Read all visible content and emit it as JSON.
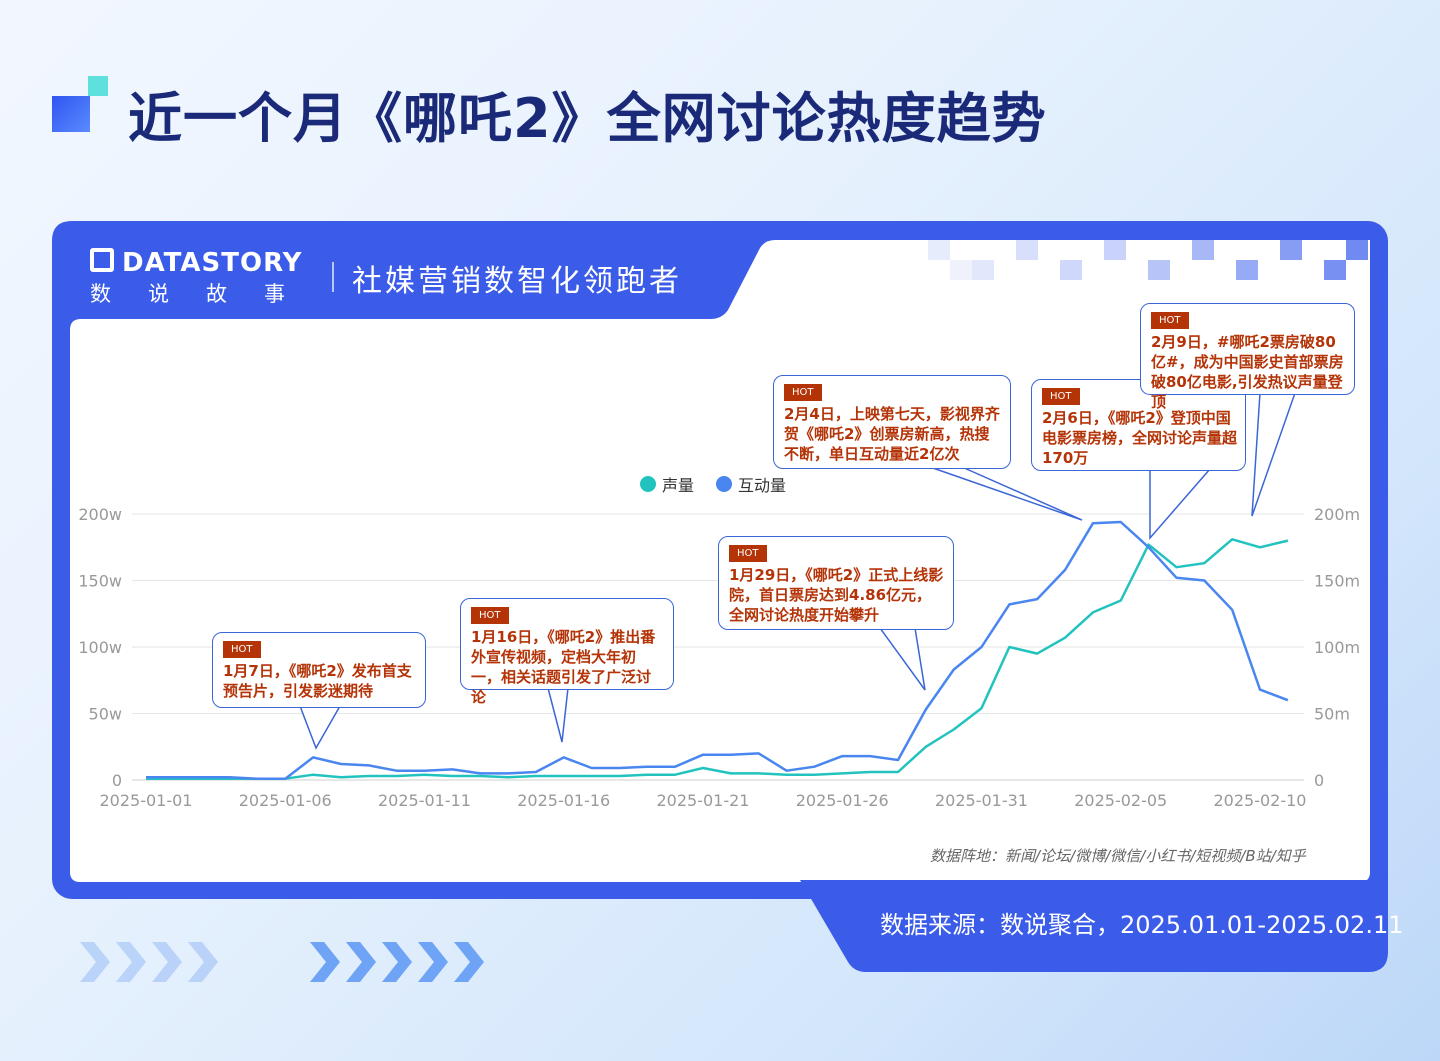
{
  "title": "近一个月《哪吒2》全网讨论热度趋势",
  "brand": {
    "logo": "DATASTORY",
    "logo_cn": "数说故事",
    "slogan": "社媒营销数智化领跑者"
  },
  "source": "数据来源：数说聚合，2025.01.01-2025.02.11",
  "footnote": "数据阵地：新闻/论坛/微博/微信/小红书/短视频/B站/知乎",
  "colors": {
    "volume": "#22c3bf",
    "interaction": "#4a86f0",
    "accent": "#3b5ce8",
    "hot": "#b43408"
  },
  "chart_data": {
    "type": "line",
    "legend": [
      "声量",
      "互动量"
    ],
    "legend_position": "top-center",
    "x": [
      "2025-01-01",
      "2025-01-02",
      "2025-01-03",
      "2025-01-04",
      "2025-01-05",
      "2025-01-06",
      "2025-01-07",
      "2025-01-08",
      "2025-01-09",
      "2025-01-10",
      "2025-01-11",
      "2025-01-12",
      "2025-01-13",
      "2025-01-14",
      "2025-01-15",
      "2025-01-16",
      "2025-01-17",
      "2025-01-18",
      "2025-01-19",
      "2025-01-20",
      "2025-01-21",
      "2025-01-22",
      "2025-01-23",
      "2025-01-24",
      "2025-01-25",
      "2025-01-26",
      "2025-01-27",
      "2025-01-28",
      "2025-01-29",
      "2025-01-30",
      "2025-01-31",
      "2025-02-01",
      "2025-02-02",
      "2025-02-03",
      "2025-02-04",
      "2025-02-05",
      "2025-02-06",
      "2025-02-07",
      "2025-02-08",
      "2025-02-09",
      "2025-02-10",
      "2025-02-11"
    ],
    "x_tick_labels": [
      "2025-01-01",
      "2025-01-06",
      "2025-01-11",
      "2025-01-16",
      "2025-01-21",
      "2025-01-26",
      "2025-01-31",
      "2025-02-05",
      "2025-02-10"
    ],
    "y_left_ticks": [
      "0",
      "50w",
      "100w",
      "150w",
      "200w"
    ],
    "y_right_ticks": [
      "0",
      "50m",
      "100m",
      "150m",
      "200m"
    ],
    "ylim": [
      0,
      200
    ],
    "grid": true,
    "series": [
      {
        "name": "声量",
        "axis": "left",
        "values": [
          1,
          1,
          1,
          1,
          1,
          1,
          4,
          2,
          3,
          3,
          4,
          3,
          3,
          2,
          3,
          3,
          3,
          3,
          4,
          4,
          9,
          5,
          5,
          4,
          4,
          5,
          6,
          6,
          25,
          38,
          54,
          100,
          95,
          107,
          126,
          135,
          177,
          160,
          163,
          181,
          175,
          180
        ]
      },
      {
        "name": "互动量",
        "axis": "right",
        "values": [
          2,
          2,
          2,
          2,
          1,
          1,
          17,
          12,
          11,
          7,
          7,
          8,
          5,
          5,
          6,
          17,
          9,
          9,
          10,
          10,
          19,
          19,
          20,
          7,
          10,
          18,
          18,
          15,
          53,
          83,
          100,
          132,
          136,
          158,
          193,
          194,
          175,
          152,
          150,
          128,
          68,
          60
        ]
      }
    ],
    "annotations": [
      {
        "hot": "HOT",
        "text": "1月7日，《哪吒2》发布首支预告片，引发影迷期待"
      },
      {
        "hot": "HOT",
        "text": "1月16日，《哪吒2》推出番外宣传视频，定档大年初一，相关话题引发了广泛讨论"
      },
      {
        "hot": "HOT",
        "text": "1月29日，《哪吒2》正式上线影院，首日票房达到4.86亿元，全网讨论热度开始攀升"
      },
      {
        "hot": "HOT",
        "text": "2月4日，上映第七天，影视界齐贺《哪吒2》创票房新高，热搜不断，单日互动量近2亿次"
      },
      {
        "hot": "HOT",
        "text": "2月6日，《哪吒2》登顶中国电影票房榜，全网讨论声量超170万"
      },
      {
        "hot": "HOT",
        "text": "2月9日，#哪吒2票房破80亿#，成为中国影史首部票房破80亿电影,引发热议声量登顶"
      }
    ]
  }
}
